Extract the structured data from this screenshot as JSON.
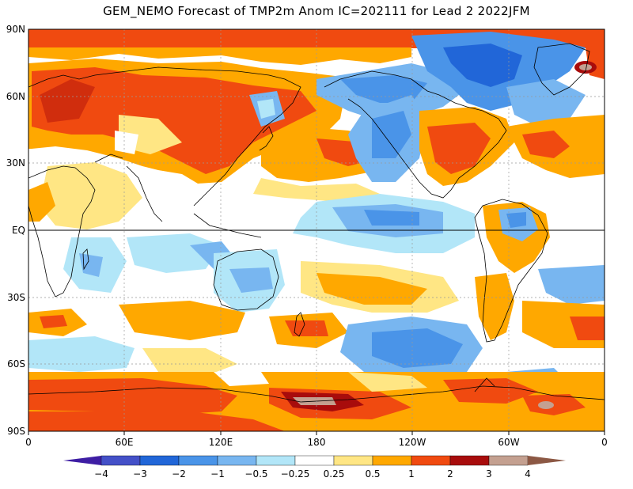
{
  "title": "GEM_NEMO Forecast of TMP2m Anom IC=202111 for Lead 2 2022JFM",
  "map": {
    "lat_labels": [
      "90N",
      "60N",
      "30N",
      "EQ",
      "30S",
      "60S",
      "90S"
    ],
    "lon_labels": [
      "0",
      "60E",
      "120E",
      "180",
      "120W",
      "60W",
      "0"
    ]
  },
  "colorbar": {
    "labels": [
      "-4",
      "-3",
      "-2",
      "-1",
      "-0.5",
      "-0.25",
      "0.25",
      "0.5",
      "1",
      "2",
      "3",
      "4"
    ],
    "colors": [
      "#3e1ea4",
      "#4450c8",
      "#2166d8",
      "#4a94e8",
      "#78b6f0",
      "#b2e6f8",
      "#ffffff",
      "#ffe684",
      "#ffa800",
      "#f04a10",
      "#a80c0c",
      "#c4a090",
      "#8c5844"
    ]
  },
  "palette": {
    "white": "#ffffff",
    "light_yellow": "#ffe684",
    "orange": "#ffa800",
    "red_orange": "#f04a10",
    "dark_red": "#a80c0c",
    "pinkish_brown": "#c4a090",
    "light_cyan": "#b2e6f8",
    "light_blue": "#78b6f0",
    "blue": "#4a94e8"
  }
}
